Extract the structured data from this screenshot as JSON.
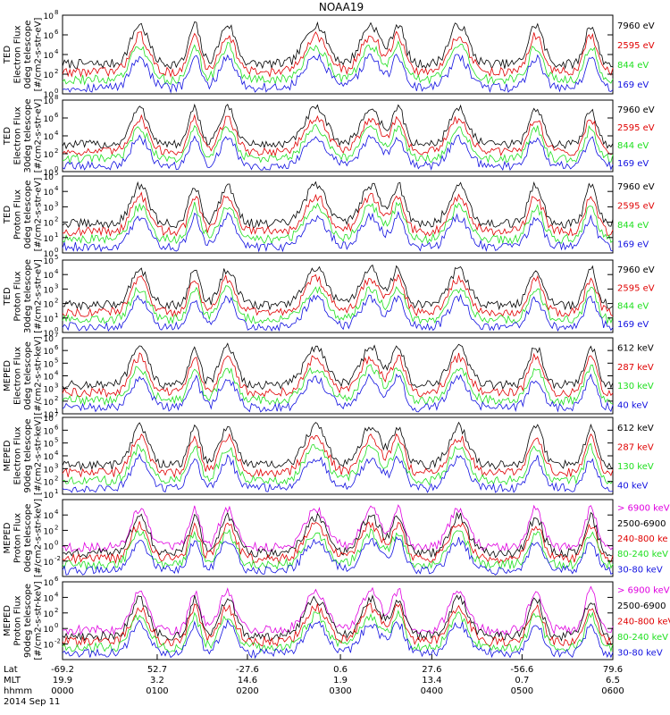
{
  "title": "NOAA19",
  "colors": {
    "black": "#000000",
    "blue": "#1010e0",
    "red": "#e00000",
    "green": "#20e020",
    "magenta": "#e000e0"
  },
  "chart_data": [
    {
      "type": "line",
      "ylabel_lines": [
        "TED",
        "Electron Flux",
        "0deg telescope",
        "[#/cm2-s-str-eV]"
      ],
      "y_ticks": [
        {
          "exp": "8",
          "frac": 0.0
        },
        {
          "exp": "6",
          "frac": 0.25
        },
        {
          "exp": "4",
          "frac": 0.5
        },
        {
          "exp": "2",
          "frac": 0.75
        },
        {
          "exp": "0",
          "frac": 1.0
        }
      ],
      "series": [
        {
          "name": "7960 eV",
          "color": "black"
        },
        {
          "name": "2595 eV",
          "color": "red"
        },
        {
          "name": "844 eV",
          "color": "green"
        },
        {
          "name": "169 eV",
          "color": "blue"
        }
      ]
    },
    {
      "type": "line",
      "ylabel_lines": [
        "TED",
        "Electron Flux",
        "30deg telescope",
        "[#/cm2-s-str-eV]"
      ],
      "y_ticks": [
        {
          "exp": "8",
          "frac": 0.0
        },
        {
          "exp": "6",
          "frac": 0.25
        },
        {
          "exp": "4",
          "frac": 0.5
        },
        {
          "exp": "2",
          "frac": 0.75
        },
        {
          "exp": "0",
          "frac": 1.0
        }
      ],
      "series": [
        {
          "name": "7960 eV",
          "color": "black"
        },
        {
          "name": "2595 eV",
          "color": "red"
        },
        {
          "name": "844 eV",
          "color": "green"
        },
        {
          "name": "169 eV",
          "color": "blue"
        }
      ]
    },
    {
      "type": "line",
      "ylabel_lines": [
        "TED",
        "Proton Flux",
        "0deg telescope",
        "[#/cm2-s-str-eV]"
      ],
      "y_ticks": [
        {
          "exp": "5",
          "frac": 0.0
        },
        {
          "exp": "4",
          "frac": 0.2
        },
        {
          "exp": "3",
          "frac": 0.4
        },
        {
          "exp": "2",
          "frac": 0.6
        },
        {
          "exp": "1",
          "frac": 0.8
        },
        {
          "exp": "0",
          "frac": 1.0
        }
      ],
      "series": [
        {
          "name": "7960 eV",
          "color": "black"
        },
        {
          "name": "2595 eV",
          "color": "red"
        },
        {
          "name": "844 eV",
          "color": "green"
        },
        {
          "name": "169 eV",
          "color": "blue"
        }
      ]
    },
    {
      "type": "line",
      "ylabel_lines": [
        "TED",
        "Proton Flux",
        "30deg telescope",
        "[#/cm2-s-str-eV]"
      ],
      "y_ticks": [
        {
          "exp": "5",
          "frac": 0.0
        },
        {
          "exp": "4",
          "frac": 0.2
        },
        {
          "exp": "3",
          "frac": 0.4
        },
        {
          "exp": "2",
          "frac": 0.6
        },
        {
          "exp": "1",
          "frac": 0.8
        },
        {
          "exp": "0",
          "frac": 1.0
        }
      ],
      "series": [
        {
          "name": "7960 eV",
          "color": "black"
        },
        {
          "name": "2595 eV",
          "color": "red"
        },
        {
          "name": "844 eV",
          "color": "green"
        },
        {
          "name": "169 eV",
          "color": "blue"
        }
      ]
    },
    {
      "type": "line",
      "ylabel_lines": [
        "MEPED",
        "Electron Flux",
        "0deg telescope",
        "[#/cm2-s-str-keV]"
      ],
      "y_ticks": [
        {
          "exp": "7",
          "frac": 0.0
        },
        {
          "exp": "6",
          "frac": 0.1667
        },
        {
          "exp": "5",
          "frac": 0.3333
        },
        {
          "exp": "4",
          "frac": 0.5
        },
        {
          "exp": "3",
          "frac": 0.6667
        },
        {
          "exp": "2",
          "frac": 0.8333
        },
        {
          "exp": "1",
          "frac": 1.0
        }
      ],
      "series": [
        {
          "name": "612 keV",
          "color": "black"
        },
        {
          "name": "287 keV",
          "color": "red"
        },
        {
          "name": "130 keV",
          "color": "green"
        },
        {
          "name": "40 keV",
          "color": "blue"
        }
      ]
    },
    {
      "type": "line",
      "ylabel_lines": [
        "MEPED",
        "Electron Flux",
        "90deg telescope",
        "[#/cm2-s-str-keV]"
      ],
      "y_ticks": [
        {
          "exp": "7",
          "frac": 0.0
        },
        {
          "exp": "6",
          "frac": 0.1667
        },
        {
          "exp": "5",
          "frac": 0.3333
        },
        {
          "exp": "4",
          "frac": 0.5
        },
        {
          "exp": "3",
          "frac": 0.6667
        },
        {
          "exp": "2",
          "frac": 0.8333
        },
        {
          "exp": "1",
          "frac": 1.0
        }
      ],
      "series": [
        {
          "name": "612 keV",
          "color": "black"
        },
        {
          "name": "287 keV",
          "color": "red"
        },
        {
          "name": "130 keV",
          "color": "green"
        },
        {
          "name": "40 keV",
          "color": "blue"
        }
      ]
    },
    {
      "type": "line",
      "ylabel_lines": [
        "MEPED",
        "Proton Flux",
        "0deg telescope",
        "[#/cm2-s-str-keV]"
      ],
      "y_ticks": [
        {
          "exp": "4",
          "frac": 0.2
        },
        {
          "exp": "2",
          "frac": 0.4
        },
        {
          "exp": "0",
          "frac": 0.6
        },
        {
          "exp": "-2",
          "frac": 0.8
        }
      ],
      "series": [
        {
          "name": "> 6900 keV",
          "color": "magenta"
        },
        {
          "name": "2500-6900",
          "color": "black"
        },
        {
          "name": "240-800 ke",
          "color": "red"
        },
        {
          "name": "80-240 keV",
          "color": "green"
        },
        {
          "name": "30-80 keV",
          "color": "blue"
        }
      ]
    },
    {
      "type": "line",
      "ylabel_lines": [
        "MEPED",
        "Proton Flux",
        "90deg telescope",
        "[#/cm2-s-str-keV]"
      ],
      "y_ticks": [
        {
          "exp": "6",
          "frac": 0.0
        },
        {
          "exp": "4",
          "frac": 0.2
        },
        {
          "exp": "2",
          "frac": 0.4
        },
        {
          "exp": "0",
          "frac": 0.6
        },
        {
          "exp": "-2",
          "frac": 0.8
        }
      ],
      "series": [
        {
          "name": "> 6900 keV",
          "color": "magenta"
        },
        {
          "name": "2500-6900",
          "color": "black"
        },
        {
          "name": "240-800 keV",
          "color": "red"
        },
        {
          "name": "80-240 keV",
          "color": "green"
        },
        {
          "name": "30-80 keV",
          "color": "blue"
        }
      ]
    }
  ],
  "x_axis": {
    "row_labels": [
      "Lat",
      "MLT",
      "hhmm"
    ],
    "columns": [
      {
        "lat": "-69.2",
        "mlt": "19.9",
        "hhmm": "0000"
      },
      {
        "lat": "52.7",
        "mlt": "3.2",
        "hhmm": "0100"
      },
      {
        "lat": "-27.6",
        "mlt": "14.6",
        "hhmm": "0200"
      },
      {
        "lat": "0.6",
        "mlt": "1.9",
        "hhmm": "0300"
      },
      {
        "lat": "27.6",
        "mlt": "13.4",
        "hhmm": "0400"
      },
      {
        "lat": "-56.6",
        "mlt": "0.7",
        "hhmm": "0500"
      },
      {
        "lat": "79.6",
        "mlt": "6.5",
        "hhmm": "0600"
      }
    ],
    "date": "2014 Sep 11"
  }
}
